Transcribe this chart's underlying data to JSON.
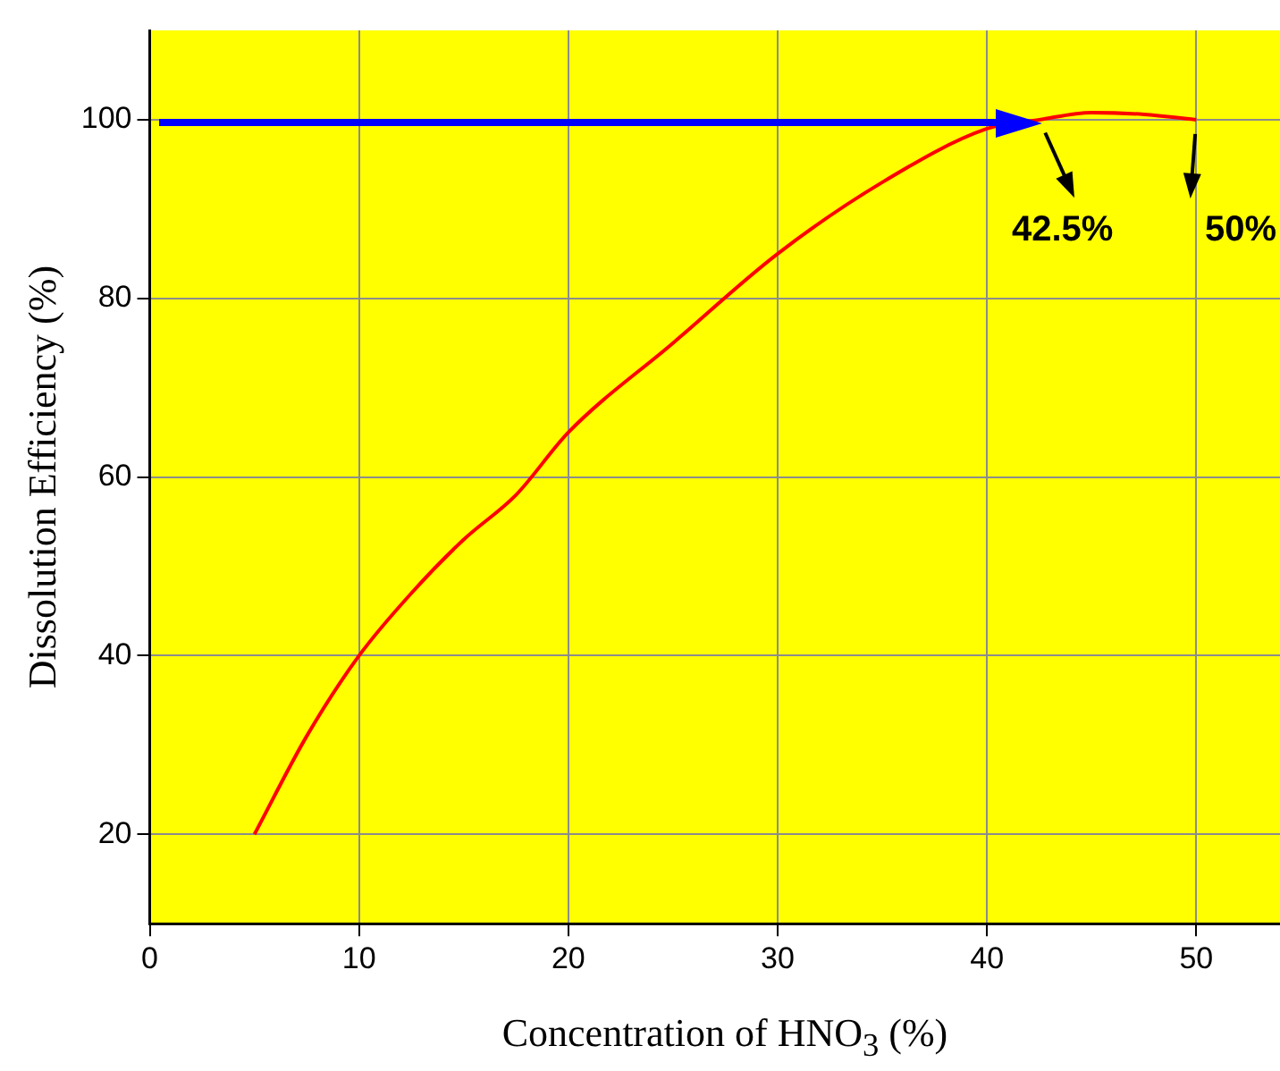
{
  "chart_data": {
    "type": "line",
    "xlabel": "Concentration of HNO$_{3}$ (%)",
    "ylabel": "Dissolution Efficiency (%)",
    "xlim": [
      0,
      54
    ],
    "ylim": [
      10,
      110
    ],
    "xticks": [
      0,
      10,
      20,
      30,
      40,
      50
    ],
    "yticks": [
      20,
      40,
      60,
      80,
      100
    ],
    "grid": true,
    "legend": false,
    "marker": "none",
    "line_style": "solid",
    "series": [
      {
        "color": "#ff0000",
        "x": [
          5,
          7.5,
          10,
          12.5,
          15,
          17.5,
          20,
          25,
          30,
          35,
          40,
          42.5,
          45,
          47.5,
          50
        ],
        "values": [
          20,
          31,
          40,
          47,
          53,
          58,
          65,
          75,
          85,
          93,
          99,
          100,
          100.8,
          100.6,
          100
        ]
      }
    ],
    "annotations": [
      {
        "text": "42.5%",
        "x": 42.5,
        "y": 100
      },
      {
        "text": "50%",
        "x": 50,
        "y": 100
      }
    ]
  }
}
